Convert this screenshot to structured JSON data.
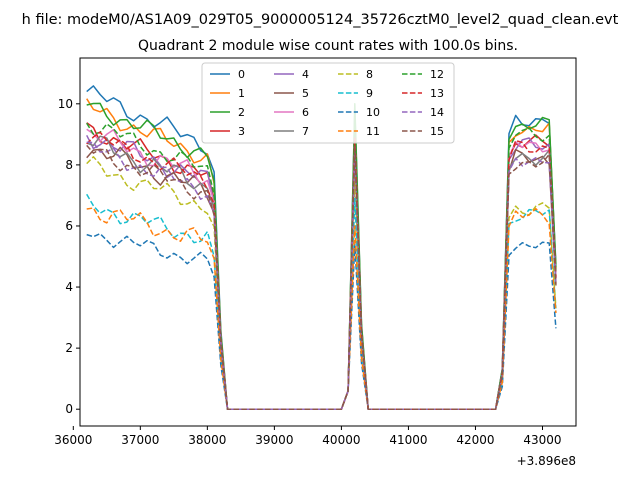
{
  "chart_data": {
    "type": "line",
    "suptitle": "h file: modeM0/AS1A09_029T05_9000005124_35726cztM0_level2_quad_clean.evt",
    "title": "Quadrant 2 module wise count rates with 100.0s bins.",
    "xlabel": "",
    "ylabel": "",
    "x_offset_label": "+3.896e8",
    "xlim": [
      36100,
      43500
    ],
    "ylim": [
      -0.55,
      11.5
    ],
    "x_ticks": [
      36000,
      37000,
      38000,
      39000,
      40000,
      41000,
      42000,
      43000
    ],
    "x_tick_labels": [
      "36000",
      "37000",
      "38000",
      "39000",
      "40000",
      "41000",
      "42000",
      "43000"
    ],
    "y_ticks": [
      0,
      2,
      4,
      6,
      8,
      10
    ],
    "y_tick_labels": [
      "0",
      "2",
      "4",
      "6",
      "8",
      "10"
    ],
    "legend_position": "upper-center",
    "grid": false,
    "series": [
      {
        "name": "0",
        "color": "#1f77b4",
        "dash": "solid",
        "level": 10.4,
        "amp": 0.35,
        "peak": 9.8,
        "tail": 9.5
      },
      {
        "name": "1",
        "color": "#ff7f0e",
        "dash": "solid",
        "level": 9.9,
        "amp": 0.35,
        "peak": 9.5,
        "tail": 9.2
      },
      {
        "name": "2",
        "color": "#2ca02c",
        "dash": "solid",
        "level": 10.0,
        "amp": 0.35,
        "peak": 10.0,
        "tail": 9.3
      },
      {
        "name": "3",
        "color": "#d62728",
        "dash": "solid",
        "level": 9.2,
        "amp": 0.35,
        "peak": 9.0,
        "tail": 8.7
      },
      {
        "name": "4",
        "color": "#9467bd",
        "dash": "solid",
        "level": 9.0,
        "amp": 0.4,
        "peak": 8.8,
        "tail": 8.6
      },
      {
        "name": "5",
        "color": "#8c564b",
        "dash": "solid",
        "level": 8.6,
        "amp": 0.4,
        "peak": 8.6,
        "tail": 8.2
      },
      {
        "name": "6",
        "color": "#e377c2",
        "dash": "solid",
        "level": 9.1,
        "amp": 0.4,
        "peak": 9.0,
        "tail": 8.7
      },
      {
        "name": "7",
        "color": "#7f7f7f",
        "dash": "solid",
        "level": 8.8,
        "amp": 0.4,
        "peak": 8.7,
        "tail": 8.3
      },
      {
        "name": "8",
        "color": "#bcbd22",
        "dash": "dashed",
        "level": 8.0,
        "amp": 0.35,
        "peak": 7.6,
        "tail": 6.6
      },
      {
        "name": "9",
        "color": "#17becf",
        "dash": "dashed",
        "level": 6.7,
        "amp": 0.35,
        "peak": 6.9,
        "tail": 6.4
      },
      {
        "name": "10",
        "color": "#1f77b4",
        "dash": "dashed",
        "level": 5.8,
        "amp": 0.3,
        "peak": 5.4,
        "tail": 5.3
      },
      {
        "name": "11",
        "color": "#ff7f0e",
        "dash": "dashed",
        "level": 6.6,
        "amp": 0.4,
        "peak": 6.0,
        "tail": 6.3
      },
      {
        "name": "12",
        "color": "#2ca02c",
        "dash": "dashed",
        "level": 9.4,
        "amp": 0.35,
        "peak": 9.2,
        "tail": 9.0
      },
      {
        "name": "13",
        "color": "#d62728",
        "dash": "dashed",
        "level": 9.0,
        "amp": 0.35,
        "peak": 8.9,
        "tail": 8.6
      },
      {
        "name": "14",
        "color": "#9467bd",
        "dash": "dashed",
        "level": 8.6,
        "amp": 0.35,
        "peak": 8.4,
        "tail": 8.2
      },
      {
        "name": "15",
        "color": "#8c564b",
        "dash": "dashed",
        "level": 8.5,
        "amp": 0.35,
        "peak": 8.6,
        "tail": 8.1
      }
    ]
  }
}
